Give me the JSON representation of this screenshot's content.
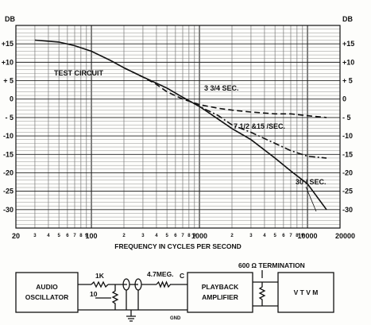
{
  "chart_data": {
    "type": "line",
    "x_scale": "log",
    "xlim": [
      20,
      20000
    ],
    "ylim": [
      -35,
      20
    ],
    "grid": true,
    "xlabel": "FREQUENCY IN CYCLES PER SECOND",
    "ylabel_left": "DB",
    "ylabel_right": "DB",
    "y_ticks": [
      15,
      10,
      5,
      0,
      -5,
      -10,
      -15,
      -20,
      -25,
      -30
    ],
    "y_tick_labels": [
      "+15",
      "+10",
      "+ 5",
      "0",
      "- 5",
      "-10",
      "-15",
      "-20",
      "-25",
      "-30"
    ],
    "x_major_ticks": [
      {
        "value": 20,
        "label": "20"
      },
      {
        "value": 100,
        "label": "100"
      },
      {
        "value": 1000,
        "label": "1000"
      },
      {
        "value": 10000,
        "label": "10000"
      },
      {
        "value": 20000,
        "label": "20000"
      }
    ],
    "x_minor_labels": [
      {
        "value": 30,
        "label": "3"
      },
      {
        "value": 40,
        "label": "4"
      },
      {
        "value": 50,
        "label": "5"
      },
      {
        "value": 60,
        "label": "6"
      },
      {
        "value": 70,
        "label": "7"
      },
      {
        "value": 80,
        "label": "8"
      },
      {
        "value": 90,
        "label": "9"
      },
      {
        "value": 200,
        "label": "2"
      },
      {
        "value": 300,
        "label": "3"
      },
      {
        "value": 400,
        "label": "4"
      },
      {
        "value": 500,
        "label": "5"
      },
      {
        "value": 600,
        "label": "6"
      },
      {
        "value": 700,
        "label": "7"
      },
      {
        "value": 800,
        "label": "8"
      },
      {
        "value": 900,
        "label": "9"
      },
      {
        "value": 2000,
        "label": "2"
      },
      {
        "value": 3000,
        "label": "3"
      },
      {
        "value": 4000,
        "label": "4"
      },
      {
        "value": 5000,
        "label": "5"
      },
      {
        "value": 6000,
        "label": "6"
      },
      {
        "value": 7000,
        "label": "7"
      },
      {
        "value": 8000,
        "label": "8"
      },
      {
        "value": 9000,
        "label": "9"
      }
    ],
    "series": [
      {
        "name": "TEST CIRCUIT",
        "style": "solid",
        "x": [
          30,
          50,
          70,
          100,
          150,
          200,
          300,
          500,
          700,
          1000,
          1500,
          2000,
          3000,
          5000,
          7000,
          10000,
          15000
        ],
        "y": [
          16,
          15.5,
          14.5,
          13,
          10.5,
          8.5,
          6,
          3,
          0.5,
          -2,
          -5.5,
          -8,
          -11,
          -16,
          -19.5,
          -23,
          -30
        ]
      },
      {
        "name": "3 3/4 / SEC.",
        "style": "dashed",
        "x": [
          200,
          300,
          400,
          500,
          700,
          1000,
          1500,
          2000,
          3000,
          5000,
          7000,
          10000,
          15000
        ],
        "y": [
          8.5,
          6,
          4,
          2,
          0,
          -1.5,
          -2.5,
          -3,
          -3.5,
          -4,
          -4,
          -4.5,
          -5
        ]
      },
      {
        "name": "7 1/2 & 15 / SEC.",
        "style": "dash-dot",
        "x": [
          700,
          1000,
          1500,
          2000,
          3000,
          5000,
          7000,
          10000,
          15000
        ],
        "y": [
          0.5,
          -2,
          -4.5,
          -7,
          -9,
          -12,
          -14,
          -15.5,
          -16
        ]
      },
      {
        "name": "30 / SEC.",
        "style": "solid",
        "x": [],
        "y": []
      }
    ]
  },
  "labels": {
    "db_left": "DB",
    "db_right": "DB",
    "test_circuit": "TEST CIRCUIT",
    "speed_375": "3 3/4 SEC.",
    "speed_75_15": "7 1/2 &15 /SEC.",
    "speed_30": "30 / SEC."
  },
  "diagram": {
    "audio_oscillator": [
      "AUDIO",
      "OSCILLATOR"
    ],
    "resistor_1k": "1K",
    "resistor_10": "10",
    "resistor_47meg": "4.7MEG.",
    "c_label": "C",
    "gnd_label": "GND",
    "playback_amplifier": [
      "PLAYBACK",
      "AMPLIFIER"
    ],
    "termination": "600 Ω TERMINATION",
    "vtvm": "V T V M"
  }
}
